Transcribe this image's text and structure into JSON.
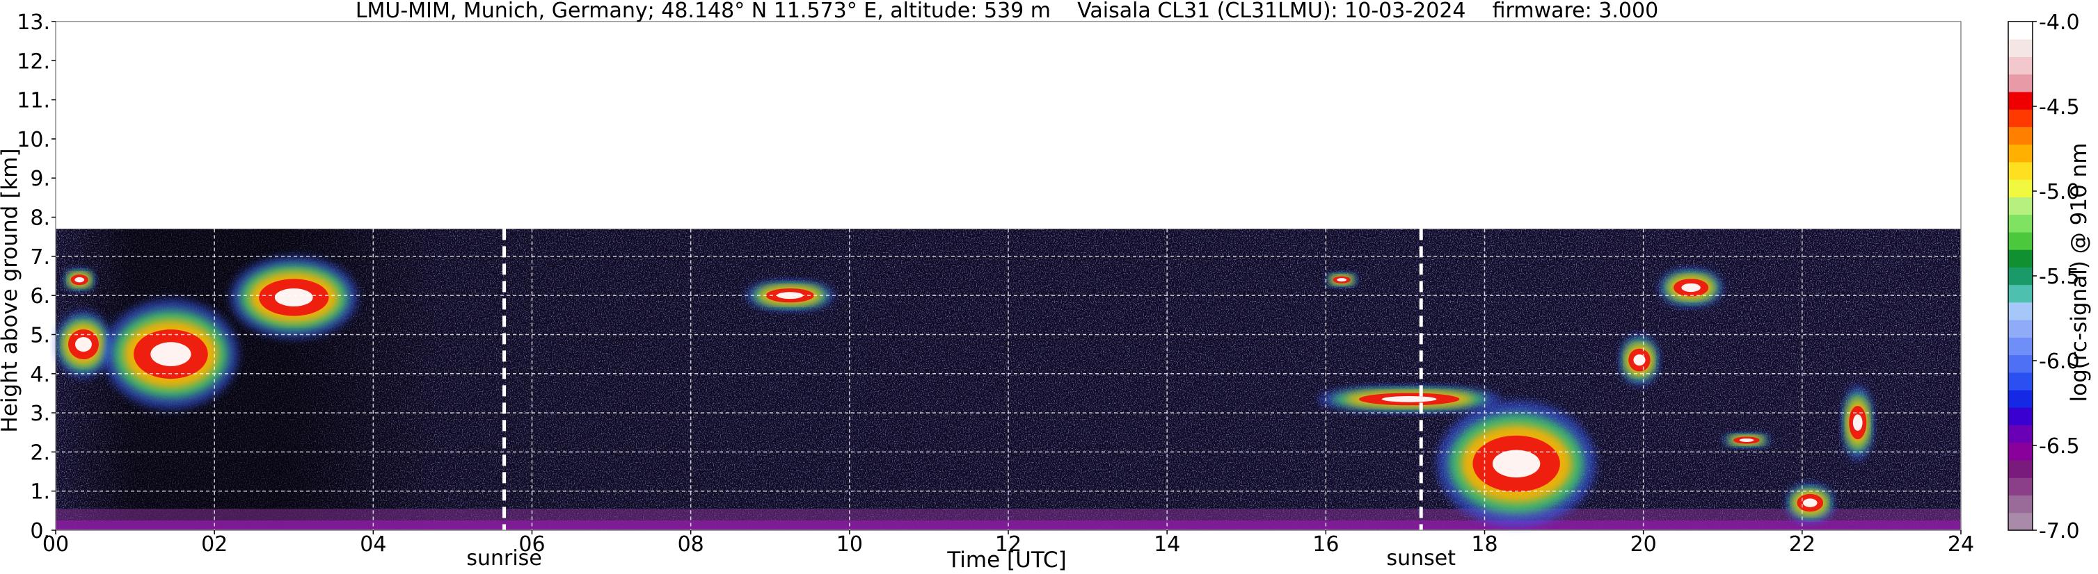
{
  "chart_data": {
    "type": "heatmap",
    "title": "LMU-MIM, Munich, Germany; 48.148° N 11.573° E, altitude: 539 m    Vaisala CL31 (CL31LMU): 10-03-2024    firmware: 3.000",
    "xlabel": "Time [UTC]",
    "ylabel": "Height above ground [km]",
    "xlim": [
      0,
      24
    ],
    "ylim": [
      0,
      13
    ],
    "x_ticks": [
      "00",
      "02",
      "04",
      "06",
      "08",
      "10",
      "12",
      "14",
      "16",
      "18",
      "20",
      "22",
      "24"
    ],
    "y_ticks": [
      "0.",
      "1.",
      "2.",
      "3.",
      "4.",
      "5.",
      "6.",
      "7.",
      "8.",
      "9.",
      "10.",
      "11.",
      "12.",
      "13."
    ],
    "grid": true,
    "max_range_km": 7.7,
    "colorbar": {
      "label": "log(rc-signal) @ 910 nm",
      "range": [
        -7.0,
        -4.0
      ],
      "ticks": [
        "-4.0",
        "-4.5",
        "-5.0",
        "-5.5",
        "-6.0",
        "-6.5",
        "-7.0"
      ],
      "colors": [
        "#a98aa8",
        "#9a6a98",
        "#8a3f88",
        "#7b1a7d",
        "#8a009b",
        "#6a00b5",
        "#3a00d0",
        "#1428e6",
        "#2b50f2",
        "#4e70f5",
        "#6f8ef7",
        "#90acf8",
        "#a6c8f8",
        "#4dc0b0",
        "#1a9a68",
        "#109030",
        "#4cc83c",
        "#7fe260",
        "#b8f080",
        "#f0f840",
        "#ffe020",
        "#ffb000",
        "#ff7f00",
        "#ff3a00",
        "#ee0000",
        "#e89aa6",
        "#f2c8cc",
        "#f5e6e6",
        "#ffffff"
      ]
    },
    "annotations": [
      {
        "text": "sunrise",
        "x": 5.65
      },
      {
        "text": "sunset",
        "x": 17.2
      }
    ],
    "features": [
      {
        "kind": "cloud",
        "x0": 0.0,
        "x1": 0.7,
        "y0": 3.9,
        "y1": 5.6
      },
      {
        "kind": "cloud",
        "x0": 0.6,
        "x1": 2.3,
        "y0": 3.1,
        "y1": 5.9
      },
      {
        "kind": "cloud",
        "x0": 2.2,
        "x1": 3.8,
        "y0": 4.9,
        "y1": 7.0
      },
      {
        "kind": "cloud",
        "x0": 0.1,
        "x1": 0.5,
        "y0": 6.1,
        "y1": 6.7
      },
      {
        "kind": "cloud",
        "x0": 8.7,
        "x1": 9.8,
        "y0": 5.6,
        "y1": 6.4
      },
      {
        "kind": "cloud",
        "x0": 16.0,
        "x1": 16.4,
        "y0": 6.2,
        "y1": 6.6
      },
      {
        "kind": "cloud",
        "x0": 15.9,
        "x1": 18.2,
        "y0": 3.0,
        "y1": 3.7
      },
      {
        "kind": "cloud",
        "x0": 17.4,
        "x1": 19.4,
        "y0": 0.1,
        "y1": 3.3
      },
      {
        "kind": "cloud",
        "x0": 19.7,
        "x1": 20.2,
        "y0": 3.7,
        "y1": 5.0
      },
      {
        "kind": "cloud",
        "x0": 20.2,
        "x1": 21.0,
        "y0": 5.7,
        "y1": 6.7
      },
      {
        "kind": "cloud",
        "x0": 21.0,
        "x1": 21.6,
        "y0": 2.1,
        "y1": 2.5
      },
      {
        "kind": "cloud",
        "x0": 21.8,
        "x1": 22.4,
        "y0": 0.2,
        "y1": 1.2
      },
      {
        "kind": "cloud",
        "x0": 22.5,
        "x1": 22.9,
        "y0": 1.8,
        "y1": 3.7
      }
    ]
  }
}
